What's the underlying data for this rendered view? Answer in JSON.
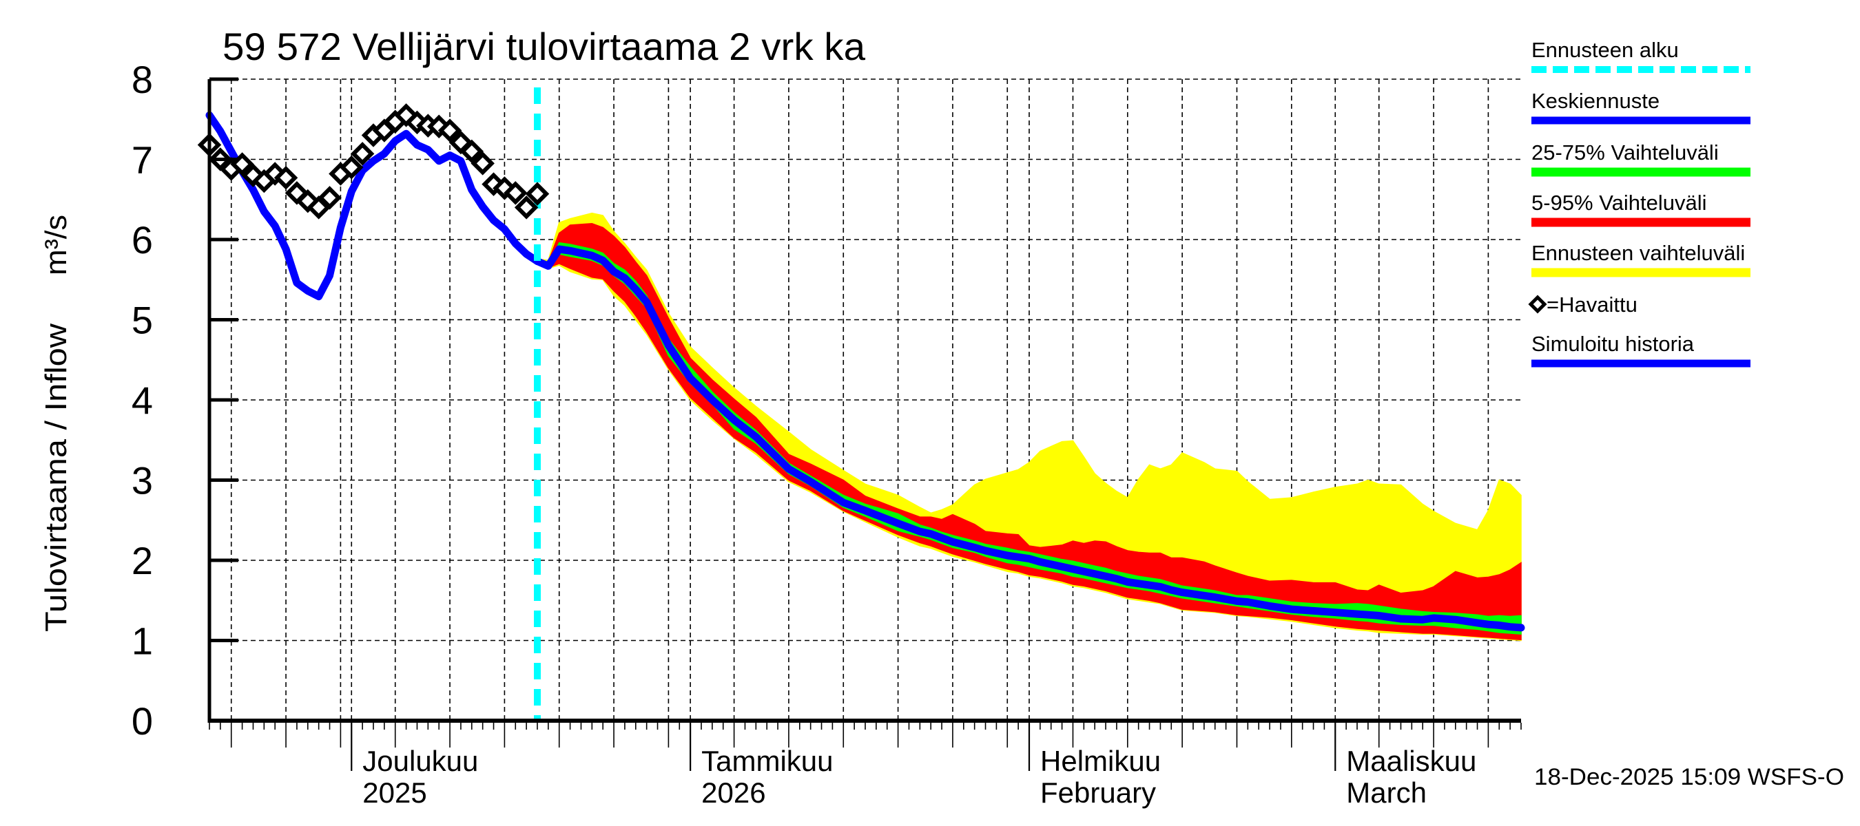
{
  "chart_data": {
    "type": "area",
    "title": "59 572 Vellijärvi tulovirtaama 2 vrk ka",
    "ylabel": "Tulovirtaama / Inflow",
    "yunit": "m³/s",
    "ylim": [
      0,
      8
    ],
    "yticks": [
      "0",
      "1",
      "2",
      "3",
      "4",
      "5",
      "6",
      "7",
      "8"
    ],
    "xlim": [
      "2025-11-18",
      "2026-03-18"
    ],
    "grid": true,
    "x_month_labels": [
      {
        "date": "2025-12-01",
        "line1": "Joulukuu",
        "line2": "2025"
      },
      {
        "date": "2026-01-01",
        "line1": "Tammikuu",
        "line2": "2026"
      },
      {
        "date": "2026-02-01",
        "line1": "Helmikuu",
        "line2": "February"
      },
      {
        "date": "2026-03-01",
        "line1": "Maaliskuu",
        "line2": "March"
      }
    ],
    "forecast_start": "2025-12-18",
    "legend": {
      "placement": "right",
      "items": [
        {
          "key": "forecast_start",
          "label": "Ennusteen alku",
          "color": "#00ffff",
          "style": "dashed"
        },
        {
          "key": "median",
          "label": "Keskiennuste",
          "color": "#0000ff",
          "style": "line"
        },
        {
          "key": "p25_p75",
          "label": "25-75% Vaihteluväli",
          "color": "#00ff00",
          "style": "band"
        },
        {
          "key": "p5_p95",
          "label": "5-95% Vaihteluväli",
          "color": "#ff0000",
          "style": "band"
        },
        {
          "key": "min_max",
          "label": "Ennusteen vaihteluväli",
          "color": "#ffff00",
          "style": "band"
        },
        {
          "key": "observed",
          "label": "=Havaittu",
          "color": "#000000",
          "style": "diamond"
        },
        {
          "key": "simulated",
          "label": "Simuloitu historia",
          "color": "#0000ff",
          "style": "line"
        }
      ]
    },
    "observed": {
      "name": "Havaittu",
      "dates": [
        "2025-11-18",
        "2025-11-19",
        "2025-11-20",
        "2025-11-21",
        "2025-11-22",
        "2025-11-23",
        "2025-11-24",
        "2025-11-25",
        "2025-11-26",
        "2025-11-27",
        "2025-11-28",
        "2025-11-29",
        "2025-11-30",
        "2025-12-01",
        "2025-12-02",
        "2025-12-03",
        "2025-12-04",
        "2025-12-05",
        "2025-12-06",
        "2025-12-07",
        "2025-12-08",
        "2025-12-09",
        "2025-12-10",
        "2025-12-11",
        "2025-12-12",
        "2025-12-13",
        "2025-12-14",
        "2025-12-15",
        "2025-12-16",
        "2025-12-17",
        "2025-12-18"
      ],
      "values": [
        7.18,
        7.0,
        6.88,
        6.94,
        6.8,
        6.73,
        6.82,
        6.77,
        6.58,
        6.48,
        6.4,
        6.52,
        6.82,
        6.9,
        7.07,
        7.3,
        7.36,
        7.47,
        7.55,
        7.46,
        7.42,
        7.41,
        7.36,
        7.21,
        7.1,
        6.95,
        6.69,
        6.64,
        6.58,
        6.4,
        6.57
      ]
    },
    "simulated": {
      "name": "Simuloitu historia",
      "dates": [
        "2025-11-18",
        "2025-11-19",
        "2025-11-20",
        "2025-11-21",
        "2025-11-22",
        "2025-11-23",
        "2025-11-24",
        "2025-11-25",
        "2025-11-26",
        "2025-11-27",
        "2025-11-28",
        "2025-11-29",
        "2025-11-30",
        "2025-12-01",
        "2025-12-02",
        "2025-12-03",
        "2025-12-04",
        "2025-12-05",
        "2025-12-06",
        "2025-12-07",
        "2025-12-08",
        "2025-12-09",
        "2025-12-10",
        "2025-12-11",
        "2025-12-12",
        "2025-12-13",
        "2025-12-14",
        "2025-12-15",
        "2025-12-16",
        "2025-12-17",
        "2025-12-18"
      ],
      "values": [
        7.55,
        7.35,
        7.1,
        6.85,
        6.62,
        6.35,
        6.17,
        5.88,
        5.46,
        5.36,
        5.29,
        5.55,
        6.15,
        6.6,
        6.86,
        6.98,
        7.07,
        7.23,
        7.32,
        7.18,
        7.12,
        6.98,
        7.05,
        6.98,
        6.62,
        6.41,
        6.24,
        6.13,
        5.95,
        5.82,
        5.73
      ]
    },
    "forecast": {
      "dates": [
        "2025-12-18",
        "2025-12-19",
        "2025-12-20",
        "2025-12-21",
        "2025-12-23",
        "2025-12-24",
        "2025-12-25",
        "2025-12-26",
        "2025-12-27",
        "2025-12-28",
        "2025-12-30",
        "2026-01-01",
        "2026-01-03",
        "2026-01-05",
        "2026-01-07",
        "2026-01-10",
        "2026-01-12",
        "2026-01-15",
        "2026-01-17",
        "2026-01-20",
        "2026-01-22",
        "2026-01-23",
        "2026-01-24",
        "2026-01-25",
        "2026-01-27",
        "2026-01-28",
        "2026-01-30",
        "2026-01-31",
        "2026-02-01",
        "2026-02-02",
        "2026-02-04",
        "2026-02-05",
        "2026-02-06",
        "2026-02-07",
        "2026-02-08",
        "2026-02-09",
        "2026-02-10",
        "2026-02-11",
        "2026-02-12",
        "2026-02-13",
        "2026-02-14",
        "2026-02-15",
        "2026-02-17",
        "2026-02-18",
        "2026-02-20",
        "2026-02-21",
        "2026-02-23",
        "2026-02-25",
        "2026-02-27",
        "2026-03-01",
        "2026-03-03",
        "2026-03-04",
        "2026-03-05",
        "2026-03-07",
        "2026-03-09",
        "2026-03-10",
        "2026-03-12",
        "2026-03-14",
        "2026-03-15",
        "2026-03-16",
        "2026-03-17",
        "2026-03-18"
      ],
      "min": [
        5.7,
        5.64,
        5.68,
        5.6,
        5.51,
        5.5,
        5.3,
        5.18,
        5.0,
        4.82,
        4.38,
        4.0,
        3.75,
        3.52,
        3.32,
        2.98,
        2.85,
        2.61,
        2.48,
        2.29,
        2.18,
        2.15,
        2.1,
        2.05,
        1.98,
        1.94,
        1.86,
        1.84,
        1.8,
        1.78,
        1.72,
        1.68,
        1.66,
        1.63,
        1.6,
        1.56,
        1.52,
        1.5,
        1.48,
        1.46,
        1.42,
        1.38,
        1.36,
        1.35,
        1.31,
        1.3,
        1.27,
        1.24,
        1.2,
        1.16,
        1.13,
        1.12,
        1.1,
        1.09,
        1.08,
        1.08,
        1.06,
        1.04,
        1.03,
        1.02,
        1.01,
        1.0
      ],
      "p5": [
        5.72,
        5.65,
        5.7,
        5.64,
        5.53,
        5.51,
        5.36,
        5.23,
        5.05,
        4.85,
        4.4,
        4.03,
        3.78,
        3.53,
        3.35,
        3.0,
        2.87,
        2.62,
        2.5,
        2.32,
        2.22,
        2.18,
        2.13,
        2.08,
        2.0,
        1.96,
        1.89,
        1.86,
        1.82,
        1.8,
        1.74,
        1.7,
        1.68,
        1.65,
        1.62,
        1.58,
        1.54,
        1.52,
        1.5,
        1.47,
        1.43,
        1.39,
        1.37,
        1.36,
        1.32,
        1.31,
        1.29,
        1.26,
        1.22,
        1.18,
        1.15,
        1.14,
        1.13,
        1.11,
        1.09,
        1.09,
        1.07,
        1.05,
        1.04,
        1.03,
        1.02,
        1.01
      ],
      "p25": [
        5.73,
        5.66,
        5.82,
        5.79,
        5.74,
        5.68,
        5.55,
        5.45,
        5.3,
        5.15,
        4.55,
        4.21,
        3.95,
        3.64,
        3.46,
        3.08,
        2.93,
        2.66,
        2.55,
        2.37,
        2.3,
        2.26,
        2.21,
        2.16,
        2.1,
        2.05,
        1.97,
        1.95,
        1.92,
        1.89,
        1.84,
        1.8,
        1.78,
        1.75,
        1.72,
        1.69,
        1.66,
        1.64,
        1.62,
        1.59,
        1.56,
        1.53,
        1.49,
        1.47,
        1.43,
        1.41,
        1.37,
        1.33,
        1.3,
        1.28,
        1.25,
        1.24,
        1.22,
        1.2,
        1.19,
        1.19,
        1.16,
        1.14,
        1.12,
        1.1,
        1.09,
        1.08
      ],
      "median": [
        5.73,
        5.67,
        5.88,
        5.86,
        5.8,
        5.74,
        5.6,
        5.52,
        5.38,
        5.22,
        4.68,
        4.27,
        4.0,
        3.75,
        3.54,
        3.14,
        2.98,
        2.72,
        2.62,
        2.46,
        2.36,
        2.33,
        2.28,
        2.23,
        2.16,
        2.12,
        2.06,
        2.04,
        2.02,
        1.98,
        1.92,
        1.89,
        1.86,
        1.83,
        1.8,
        1.77,
        1.73,
        1.71,
        1.69,
        1.67,
        1.63,
        1.6,
        1.56,
        1.54,
        1.49,
        1.48,
        1.43,
        1.39,
        1.37,
        1.35,
        1.33,
        1.32,
        1.31,
        1.27,
        1.26,
        1.28,
        1.26,
        1.22,
        1.2,
        1.19,
        1.17,
        1.16
      ],
      "p75": [
        5.74,
        5.68,
        5.96,
        5.94,
        5.88,
        5.83,
        5.7,
        5.62,
        5.48,
        5.3,
        4.76,
        4.41,
        4.1,
        3.84,
        3.62,
        3.21,
        3.05,
        2.81,
        2.7,
        2.58,
        2.44,
        2.4,
        2.35,
        2.31,
        2.24,
        2.2,
        2.15,
        2.12,
        2.1,
        2.07,
        2.01,
        1.99,
        1.96,
        1.93,
        1.9,
        1.86,
        1.83,
        1.8,
        1.78,
        1.76,
        1.72,
        1.68,
        1.64,
        1.62,
        1.56,
        1.56,
        1.52,
        1.48,
        1.46,
        1.45,
        1.46,
        1.45,
        1.43,
        1.39,
        1.36,
        1.35,
        1.34,
        1.32,
        1.3,
        1.31,
        1.3,
        1.31
      ],
      "p95": [
        5.75,
        5.72,
        6.08,
        6.18,
        6.2,
        6.15,
        6.04,
        5.9,
        5.72,
        5.55,
        5.02,
        4.52,
        4.25,
        4.01,
        3.78,
        3.32,
        3.2,
        3.0,
        2.8,
        2.64,
        2.54,
        2.54,
        2.51,
        2.57,
        2.45,
        2.36,
        2.33,
        2.32,
        2.18,
        2.16,
        2.19,
        2.24,
        2.21,
        2.24,
        2.23,
        2.17,
        2.12,
        2.1,
        2.09,
        2.09,
        2.03,
        2.03,
        1.98,
        1.93,
        1.84,
        1.8,
        1.74,
        1.75,
        1.72,
        1.72,
        1.63,
        1.62,
        1.69,
        1.59,
        1.62,
        1.67,
        1.86,
        1.78,
        1.79,
        1.82,
        1.88,
        1.97
      ],
      "max": [
        5.76,
        5.74,
        6.21,
        6.26,
        6.33,
        6.3,
        6.1,
        5.95,
        5.78,
        5.62,
        5.08,
        4.66,
        4.4,
        4.15,
        3.92,
        3.6,
        3.38,
        3.12,
        2.95,
        2.81,
        2.66,
        2.59,
        2.63,
        2.69,
        2.94,
        3.01,
        3.09,
        3.13,
        3.22,
        3.36,
        3.48,
        3.49,
        3.29,
        3.08,
        2.96,
        2.86,
        2.78,
        3.01,
        3.19,
        3.14,
        3.19,
        3.34,
        3.22,
        3.14,
        3.11,
        2.98,
        2.76,
        2.78,
        2.85,
        2.91,
        2.95,
        3.0,
        2.95,
        2.94,
        2.7,
        2.61,
        2.46,
        2.38,
        2.62,
        3.0,
        2.95,
        2.81
      ]
    },
    "colors": {
      "min_max": "#ffff00",
      "p5_p95": "#ff0000",
      "p25_p75": "#00ff00",
      "median": "#0000ff",
      "simulated": "#0000ff",
      "observed": "#000000",
      "forecast_start": "#00ffff"
    }
  },
  "footer": {
    "timestamp": "18-Dec-2025 15:09 WSFS-O"
  }
}
